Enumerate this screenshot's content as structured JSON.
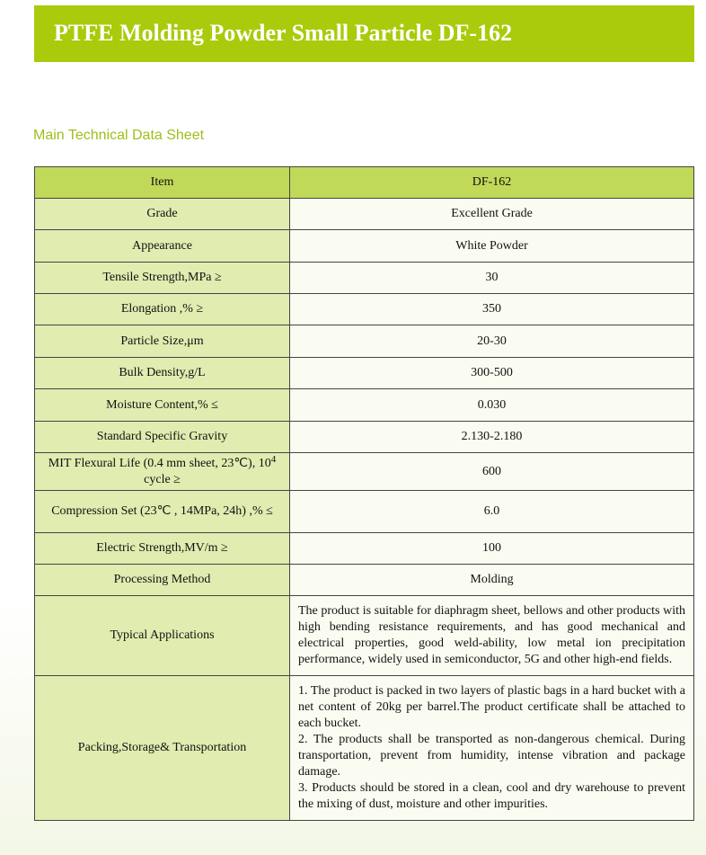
{
  "title": "PTFE Molding Powder Small Particle DF-162",
  "subtitle": "Main Technical Data Sheet",
  "colors": {
    "banner": "#a9cb0b",
    "header_row": "#c1d958",
    "label_cell": "#e0ecb0",
    "value_cell": "#fbfcf1",
    "subtitle": "#9dbf1c"
  },
  "table": {
    "header": {
      "item": "Item",
      "value": "DF-162"
    },
    "rows": [
      {
        "item": "Grade",
        "value": "Excellent Grade"
      },
      {
        "item": "Appearance",
        "value": "White Powder"
      },
      {
        "item": "Tensile Strength,MPa ≥",
        "value": "30"
      },
      {
        "item": "Elongation ,% ≥",
        "value": "350"
      },
      {
        "item": "Particle Size,μm",
        "value": "20-30"
      },
      {
        "item": "Bulk Density,g/L",
        "value": "300-500"
      },
      {
        "item": "Moisture Content,% ≤",
        "value": "0.030"
      },
      {
        "item": "Standard Specific Gravity",
        "value": "2.130-2.180"
      },
      {
        "item_pre": "MIT Flexural Life (0.4 mm sheet, 23℃), 10",
        "item_sup": "4",
        "item_post": " cycle ≥",
        "value": "600"
      },
      {
        "item": "Compression Set (23℃ , 14MPa, 24h) ,% ≤",
        "value": "6.0"
      },
      {
        "item": "Electric Strength,MV/m ≥",
        "value": "100"
      },
      {
        "item": "Processing Method",
        "value": "Molding"
      },
      {
        "item": "Typical Applications",
        "value": "The product is suitable for diaphragm sheet, bellows and other products with high bending resistance requirements, and has good mechanical and electrical properties, good weld-ability, low metal ion precipitation performance, widely used in semiconductor, 5G and other high-end fields."
      },
      {
        "item": "Packing,Storage& Transportation",
        "value_lines": [
          "1. The product is packed in two layers of plastic bags in a hard bucket with a net content of 20kg per barrel.The product certificate shall be attached to each bucket.",
          "2. The products shall be transported as non-dangerous chemical. During transportation, prevent from humidity, intense vibration and package damage.",
          "3. Products should be stored in a clean, cool and dry warehouse to prevent the mixing of dust, moisture and other impurities."
        ]
      }
    ]
  }
}
